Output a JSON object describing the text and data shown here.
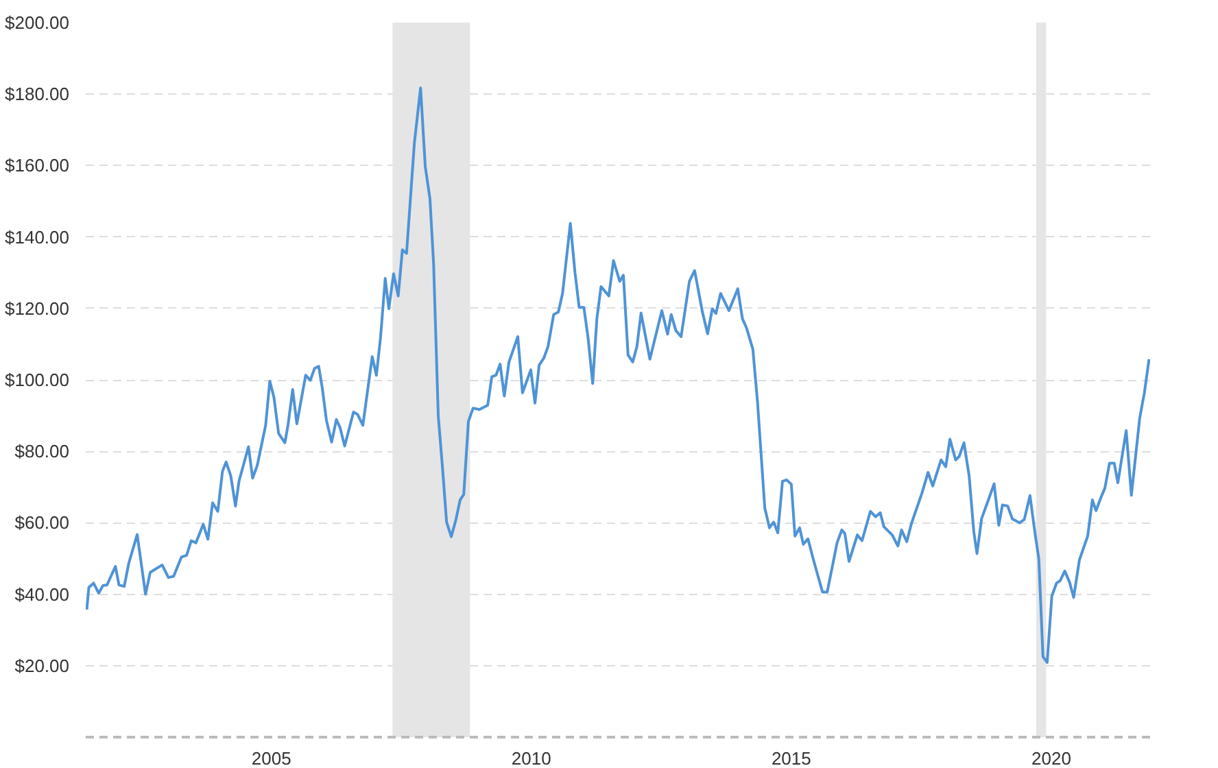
{
  "chart_data": {
    "type": "line",
    "x": [
      2001.45,
      2001.49,
      2001.58,
      2001.68,
      2001.76,
      2001.84,
      2002.0,
      2002.07,
      2002.17,
      2002.26,
      2002.42,
      2002.58,
      2002.67,
      2002.9,
      2003.02,
      2003.12,
      2003.27,
      2003.37,
      2003.46,
      2003.55,
      2003.69,
      2003.78,
      2003.87,
      2003.97,
      2004.06,
      2004.13,
      2004.22,
      2004.31,
      2004.38,
      2004.56,
      2004.64,
      2004.73,
      2004.89,
      2004.97,
      2005.05,
      2005.14,
      2005.26,
      2005.32,
      2005.41,
      2005.49,
      2005.66,
      2005.75,
      2005.83,
      2005.91,
      2005.98,
      2006.06,
      2006.16,
      2006.25,
      2006.32,
      2006.41,
      2006.58,
      2006.66,
      2006.76,
      2006.94,
      2007.02,
      2007.1,
      2007.19,
      2007.26,
      2007.35,
      2007.44,
      2007.52,
      2007.6,
      2007.75,
      2007.87,
      2007.96,
      2008.05,
      2008.12,
      2008.21,
      2008.29,
      2008.37,
      2008.46,
      2008.55,
      2008.63,
      2008.7,
      2008.79,
      2008.88,
      2009.0,
      2009.16,
      2009.24,
      2009.32,
      2009.4,
      2009.48,
      2009.57,
      2009.74,
      2009.83,
      2009.99,
      2010.07,
      2010.15,
      2010.24,
      2010.32,
      2010.43,
      2010.52,
      2010.6,
      2010.75,
      2010.84,
      2010.92,
      2011.01,
      2011.09,
      2011.18,
      2011.26,
      2011.34,
      2011.49,
      2011.58,
      2011.7,
      2011.77,
      2011.86,
      2011.95,
      2012.03,
      2012.11,
      2012.28,
      2012.51,
      2012.62,
      2012.69,
      2012.78,
      2012.88,
      2013.04,
      2013.14,
      2013.29,
      2013.39,
      2013.48,
      2013.55,
      2013.64,
      2013.8,
      2013.97,
      2014.06,
      2014.14,
      2014.26,
      2014.35,
      2014.49,
      2014.58,
      2014.66,
      2014.74,
      2014.83,
      2014.91,
      2015.0,
      2015.07,
      2015.16,
      2015.23,
      2015.32,
      2015.42,
      2015.6,
      2015.69,
      2015.88,
      2015.97,
      2016.03,
      2016.11,
      2016.27,
      2016.36,
      2016.52,
      2016.62,
      2016.71,
      2016.78,
      2016.94,
      2017.05,
      2017.12,
      2017.22,
      2017.31,
      2017.51,
      2017.63,
      2017.72,
      2017.88,
      2017.97,
      2018.05,
      2018.16,
      2018.23,
      2018.32,
      2018.42,
      2018.51,
      2018.57,
      2018.66,
      2018.79,
      2018.9,
      2018.99,
      2019.06,
      2019.16,
      2019.25,
      2019.39,
      2019.48,
      2019.59,
      2019.69,
      2019.76,
      2019.84,
      2019.92,
      2020.01,
      2020.1,
      2020.17,
      2020.26,
      2020.35,
      2020.43,
      2020.54,
      2020.7,
      2020.79,
      2020.86,
      2020.96,
      2021.03,
      2021.12,
      2021.21,
      2021.28,
      2021.44,
      2021.54,
      2021.7,
      2021.79,
      2021.88
    ],
    "series": [
      {
        "color": "#4f93d6",
        "values": [
          35.7,
          41.9,
          43.1,
          40.3,
          42.4,
          42.6,
          47.8,
          42.6,
          42.2,
          48.8,
          56.7,
          40.0,
          46.1,
          48.2,
          44.7,
          45.0,
          50.4,
          50.9,
          55.0,
          54.4,
          59.6,
          55.4,
          65.6,
          63.2,
          74.4,
          77.0,
          73.1,
          64.7,
          71.8,
          81.3,
          72.5,
          76.1,
          87.3,
          99.6,
          95.1,
          85.0,
          82.4,
          87.3,
          97.3,
          87.7,
          101.3,
          99.9,
          103.2,
          103.8,
          97.7,
          88.6,
          82.6,
          88.9,
          86.7,
          81.5,
          91.0,
          90.3,
          87.3,
          106.5,
          101.3,
          111.9,
          128.4,
          119.9,
          129.7,
          123.5,
          136.4,
          135.4,
          166.2,
          181.7,
          159.7,
          150.7,
          132.6,
          89.9,
          75.7,
          60.2,
          56.1,
          60.9,
          66.4,
          67.9,
          88.4,
          92.1,
          91.7,
          92.9,
          100.9,
          101.3,
          104.4,
          95.5,
          105.0,
          112.1,
          96.4,
          102.8,
          93.5,
          104.1,
          106.1,
          109.3,
          118.3,
          119.0,
          124.2,
          143.8,
          130.0,
          120.3,
          120.3,
          111.9,
          99.0,
          117.1,
          126.1,
          123.5,
          133.4,
          127.6,
          129.3,
          107.0,
          105.0,
          109.3,
          118.7,
          105.8,
          119.4,
          112.8,
          118.3,
          113.8,
          112.1,
          127.6,
          130.6,
          119.0,
          112.9,
          119.9,
          118.6,
          124.2,
          119.4,
          125.5,
          117.1,
          114.5,
          108.6,
          93.8,
          64.1,
          58.6,
          60.2,
          57.2,
          71.6,
          72.0,
          70.8,
          56.3,
          58.6,
          54.0,
          55.5,
          49.9,
          40.6,
          40.6,
          54.4,
          58.0,
          57.0,
          49.2,
          56.6,
          55.0,
          63.2,
          61.7,
          62.8,
          58.9,
          56.6,
          53.5,
          58.0,
          54.7,
          59.8,
          68.2,
          74.1,
          70.3,
          77.6,
          75.7,
          83.4,
          77.6,
          78.6,
          82.4,
          73.1,
          57.4,
          51.4,
          61.2,
          66.4,
          70.9,
          59.3,
          65.0,
          64.7,
          61.1,
          60.0,
          60.9,
          67.6,
          56.7,
          49.9,
          22.5,
          20.9,
          39.5,
          43.1,
          43.8,
          46.5,
          43.4,
          39.1,
          49.6,
          56.3,
          66.4,
          63.4,
          67.3,
          69.7,
          76.7,
          76.7,
          71.2,
          85.8,
          67.7,
          89.3,
          96.4,
          105.8
        ]
      }
    ],
    "xlim": [
      2001.43,
      2021.9
    ],
    "ylim": [
      0,
      200
    ],
    "xticks": [
      2005,
      2010,
      2015,
      2020
    ],
    "yticks": [
      {
        "value": 0,
        "label": null
      },
      {
        "value": 20,
        "label": "$20.00"
      },
      {
        "value": 40,
        "label": "$40.00"
      },
      {
        "value": 60,
        "label": "$60.00"
      },
      {
        "value": 80,
        "label": "$80.00"
      },
      {
        "value": 100,
        "label": "$100.00"
      },
      {
        "value": 120,
        "label": "$120.00"
      },
      {
        "value": 140,
        "label": "$140.00"
      },
      {
        "value": 160,
        "label": "$160.00"
      },
      {
        "value": 180,
        "label": "$180.00"
      },
      {
        "value": 200,
        "label": "$200.00"
      }
    ],
    "grid": "y",
    "bands": [
      {
        "axis": "x",
        "from": 2007.33,
        "to": 2008.82,
        "color": "#e5e5e5"
      },
      {
        "axis": "x",
        "from": 2019.71,
        "to": 2019.9,
        "color": "#e5e5e5"
      }
    ]
  }
}
